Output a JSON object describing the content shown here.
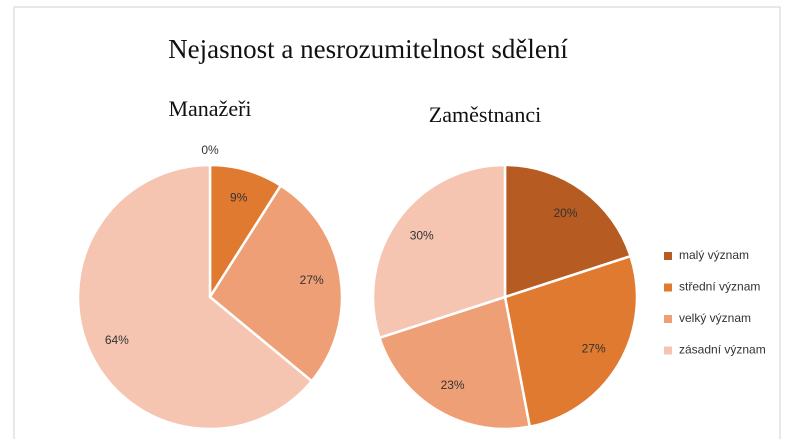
{
  "title": "Nejasnost a nesrozumitelnost sdělení",
  "chart_data": [
    {
      "type": "pie",
      "title": "Manažeři",
      "categories": [
        "malý význam",
        "střední význam",
        "velký význam",
        "zásadní význam"
      ],
      "values": [
        0,
        9,
        27,
        64
      ],
      "value_labels": [
        "0%",
        "9%",
        "27%",
        "64%"
      ],
      "colors": [
        "#b65b22",
        "#e07a30",
        "#ef9f76",
        "#f5c5b1"
      ]
    },
    {
      "type": "pie",
      "title": "Zaměstnanci",
      "categories": [
        "malý význam",
        "střední význam",
        "velký význam",
        "zásadní význam"
      ],
      "values": [
        20,
        27,
        23,
        30
      ],
      "value_labels": [
        "20%",
        "27%",
        "23%",
        "30%"
      ],
      "colors": [
        "#b65b22",
        "#e07a30",
        "#ef9f76",
        "#f5c5b1"
      ]
    }
  ]
}
